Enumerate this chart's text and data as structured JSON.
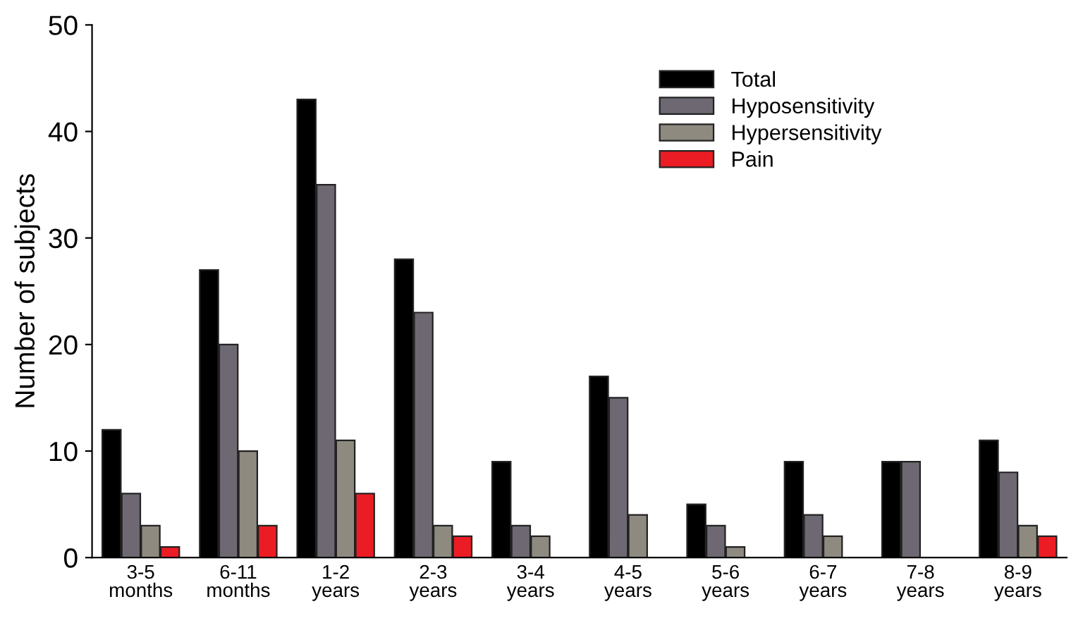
{
  "chart_data": {
    "type": "bar",
    "ylabel": "Number of subjects",
    "categories": [
      "3-5\nmonths",
      "6-11\nmonths",
      "1-2\nyears",
      "2-3\nyears",
      "3-4\nyears",
      "4-5\nyears",
      "5-6\nyears",
      "6-7\nyears",
      "7-8\nyears",
      "8-9\nyears"
    ],
    "series": [
      {
        "name": "Total",
        "color": "#000000",
        "values": [
          12,
          27,
          43,
          28,
          9,
          17,
          5,
          9,
          9,
          11
        ]
      },
      {
        "name": "Hyposensitivity",
        "color": "#6e6872",
        "values": [
          6,
          20,
          35,
          23,
          3,
          15,
          3,
          4,
          9,
          8
        ]
      },
      {
        "name": "Hypersensitivity",
        "color": "#8e8a80",
        "values": [
          3,
          10,
          11,
          3,
          2,
          4,
          1,
          2,
          null,
          3
        ]
      },
      {
        "name": "Pain",
        "color": "#ec1c24",
        "values": [
          1,
          3,
          6,
          2,
          null,
          null,
          null,
          null,
          null,
          2
        ]
      }
    ],
    "ylim": [
      0,
      50
    ],
    "yticks": [
      0,
      10,
      20,
      30,
      40,
      50
    ],
    "grid": false,
    "legend": "top right"
  }
}
